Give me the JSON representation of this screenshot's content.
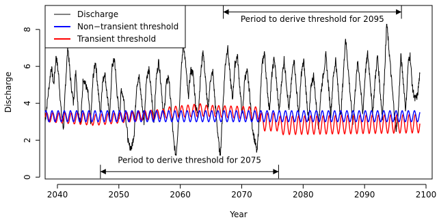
{
  "chart_data": {
    "type": "line",
    "xlabel": "Year",
    "ylabel": "Discharge",
    "xlim": [
      2038,
      2101
    ],
    "ylim": [
      -0.1,
      9.3
    ],
    "x_ticks": [
      2040,
      2050,
      2060,
      2070,
      2080,
      2090,
      2100
    ],
    "y_ticks": [
      0,
      2,
      4,
      6,
      8
    ],
    "grid": false,
    "legend_position": "top-left",
    "series": [
      {
        "name": "Discharge",
        "color": "#000000",
        "points": [
          [
            2038.0,
            3.0
          ],
          [
            2038.5,
            4.5
          ],
          [
            2039.0,
            6.0
          ],
          [
            2039.4,
            5.0
          ],
          [
            2039.8,
            6.6
          ],
          [
            2040.2,
            5.5
          ],
          [
            2040.6,
            3.6
          ],
          [
            2041.0,
            2.6
          ],
          [
            2041.3,
            5.0
          ],
          [
            2041.7,
            7.1
          ],
          [
            2042.1,
            5.4
          ],
          [
            2042.6,
            4.0
          ],
          [
            2043.0,
            5.8
          ],
          [
            2043.4,
            3.5
          ],
          [
            2043.8,
            3.0
          ],
          [
            2044.2,
            5.4
          ],
          [
            2044.6,
            5.0
          ],
          [
            2045.0,
            4.5
          ],
          [
            2045.4,
            2.9
          ],
          [
            2045.8,
            5.4
          ],
          [
            2046.2,
            6.3
          ],
          [
            2046.6,
            4.8
          ],
          [
            2047.0,
            3.4
          ],
          [
            2047.3,
            5.0
          ],
          [
            2047.7,
            5.7
          ],
          [
            2048.1,
            4.4
          ],
          [
            2048.5,
            3.2
          ],
          [
            2048.9,
            6.0
          ],
          [
            2049.3,
            6.4
          ],
          [
            2049.7,
            4.6
          ],
          [
            2050.1,
            3.2
          ],
          [
            2050.4,
            4.8
          ],
          [
            2050.8,
            4.2
          ],
          [
            2051.2,
            3.0
          ],
          [
            2051.6,
            1.7
          ],
          [
            2052.1,
            1.6
          ],
          [
            2052.5,
            2.4
          ],
          [
            2052.9,
            5.0
          ],
          [
            2053.3,
            5.4
          ],
          [
            2053.7,
            4.2
          ],
          [
            2054.1,
            3.0
          ],
          [
            2054.5,
            5.4
          ],
          [
            2054.9,
            5.8
          ],
          [
            2055.3,
            4.5
          ],
          [
            2055.7,
            3.0
          ],
          [
            2056.1,
            5.4
          ],
          [
            2056.5,
            6.3
          ],
          [
            2056.9,
            4.9
          ],
          [
            2057.3,
            3.2
          ],
          [
            2057.7,
            5.0
          ],
          [
            2058.1,
            5.5
          ],
          [
            2058.5,
            3.8
          ],
          [
            2058.9,
            2.0
          ],
          [
            2059.3,
            1.1
          ],
          [
            2059.7,
            3.0
          ],
          [
            2060.1,
            5.5
          ],
          [
            2060.5,
            7.3
          ],
          [
            2060.9,
            6.0
          ],
          [
            2061.3,
            4.3
          ],
          [
            2061.7,
            5.8
          ],
          [
            2062.1,
            5.6
          ],
          [
            2062.5,
            3.9
          ],
          [
            2062.9,
            3.3
          ],
          [
            2063.3,
            5.5
          ],
          [
            2063.7,
            6.9
          ],
          [
            2064.1,
            5.3
          ],
          [
            2064.5,
            3.6
          ],
          [
            2064.9,
            5.3
          ],
          [
            2065.3,
            5.7
          ],
          [
            2065.7,
            3.9
          ],
          [
            2066.1,
            2.4
          ],
          [
            2066.5,
            1.0
          ],
          [
            2066.9,
            3.6
          ],
          [
            2067.3,
            6.0
          ],
          [
            2067.7,
            7.1
          ],
          [
            2068.1,
            5.5
          ],
          [
            2068.5,
            4.2
          ],
          [
            2068.9,
            6.1
          ],
          [
            2069.3,
            6.6
          ],
          [
            2069.7,
            4.8
          ],
          [
            2070.1,
            3.3
          ],
          [
            2070.5,
            5.4
          ],
          [
            2070.9,
            5.7
          ],
          [
            2071.3,
            4.5
          ],
          [
            2071.7,
            2.8
          ],
          [
            2072.1,
            2.0
          ],
          [
            2072.5,
            1.3
          ],
          [
            2072.9,
            3.5
          ],
          [
            2073.3,
            6.0
          ],
          [
            2073.7,
            6.8
          ],
          [
            2074.1,
            5.0
          ],
          [
            2074.5,
            3.6
          ],
          [
            2074.9,
            5.5
          ],
          [
            2075.3,
            6.5
          ],
          [
            2075.7,
            5.0
          ],
          [
            2076.1,
            3.5
          ],
          [
            2076.5,
            5.2
          ],
          [
            2076.9,
            6.4
          ],
          [
            2077.3,
            5.0
          ],
          [
            2077.7,
            3.6
          ],
          [
            2078.1,
            5.2
          ],
          [
            2078.5,
            6.5
          ],
          [
            2078.9,
            4.8
          ],
          [
            2079.3,
            3.3
          ],
          [
            2079.7,
            5.6
          ],
          [
            2080.1,
            6.3
          ],
          [
            2080.5,
            4.5
          ],
          [
            2080.9,
            3.0
          ],
          [
            2081.3,
            5.0
          ],
          [
            2081.7,
            5.5
          ],
          [
            2082.1,
            4.0
          ],
          [
            2082.5,
            2.8
          ],
          [
            2082.9,
            4.6
          ],
          [
            2083.3,
            5.6
          ],
          [
            2083.7,
            6.6
          ],
          [
            2084.1,
            5.0
          ],
          [
            2084.5,
            3.4
          ],
          [
            2084.9,
            5.4
          ],
          [
            2085.3,
            6.4
          ],
          [
            2085.7,
            4.7
          ],
          [
            2086.1,
            3.2
          ],
          [
            2086.5,
            5.3
          ],
          [
            2086.9,
            7.6
          ],
          [
            2087.3,
            6.0
          ],
          [
            2087.7,
            4.3
          ],
          [
            2088.1,
            2.9
          ],
          [
            2088.5,
            4.8
          ],
          [
            2088.9,
            6.3
          ],
          [
            2089.3,
            5.0
          ],
          [
            2089.7,
            3.4
          ],
          [
            2090.1,
            5.6
          ],
          [
            2090.5,
            6.7
          ],
          [
            2090.9,
            5.3
          ],
          [
            2091.3,
            3.4
          ],
          [
            2091.7,
            5.2
          ],
          [
            2092.1,
            6.6
          ],
          [
            2092.5,
            4.8
          ],
          [
            2092.9,
            3.2
          ],
          [
            2093.3,
            6.0
          ],
          [
            2093.6,
            8.4
          ],
          [
            2093.9,
            7.2
          ],
          [
            2094.3,
            5.6
          ],
          [
            2094.7,
            4.0
          ],
          [
            2095.1,
            2.5
          ],
          [
            2095.5,
            3.6
          ],
          [
            2095.9,
            6.6
          ],
          [
            2096.3,
            5.2
          ],
          [
            2096.7,
            3.6
          ],
          [
            2097.1,
            6.2
          ],
          [
            2097.4,
            6.6
          ],
          [
            2097.8,
            4.8
          ],
          [
            2098.2,
            4.2
          ],
          [
            2098.6,
            4.4
          ],
          [
            2099.0,
            5.6
          ]
        ]
      },
      {
        "name": "Non−transient threshold",
        "color": "#0000ff",
        "cycle": {
          "x_start": 2038.0,
          "x_end": 2099.0,
          "period": 1.0,
          "low": 3.0,
          "high": 3.6
        }
      },
      {
        "name": "Transient threshold",
        "color": "#ff0000",
        "segments": [
          {
            "x": [
              2038.0,
              2046.0
            ],
            "low_y": [
              3.0,
              2.8
            ],
            "high_y": [
              3.5,
              3.5
            ]
          },
          {
            "x": [
              2046.0,
              2058.0
            ],
            "low_y": [
              2.8,
              3.2
            ],
            "high_y": [
              3.4,
              3.7
            ]
          },
          {
            "x": [
              2058.0,
              2064.0
            ],
            "low_y": [
              3.2,
              3.3
            ],
            "high_y": [
              3.8,
              4.0
            ]
          },
          {
            "x": [
              2064.0,
              2073.0
            ],
            "low_y": [
              3.3,
              3.1
            ],
            "high_y": [
              3.9,
              3.8
            ]
          },
          {
            "x": [
              2073.0,
              2076.0
            ],
            "low_y": [
              2.5,
              2.5
            ],
            "high_y": [
              3.5,
              3.5
            ]
          },
          {
            "x": [
              2076.0,
              2099.0
            ],
            "low_y": [
              2.3,
              2.4
            ],
            "high_y": [
              3.3,
              3.4
            ]
          }
        ],
        "period": 1.0
      }
    ],
    "annotations": [
      {
        "text": "Period to derive threshold for 2095",
        "x_start": 2067,
        "x_end": 2096,
        "y": 8.95,
        "text_y": 8.45
      },
      {
        "text": "Period to derive threshold for 2075",
        "x_start": 2047,
        "x_end": 2076,
        "y": 0.3,
        "text_y": 0.8
      }
    ]
  }
}
